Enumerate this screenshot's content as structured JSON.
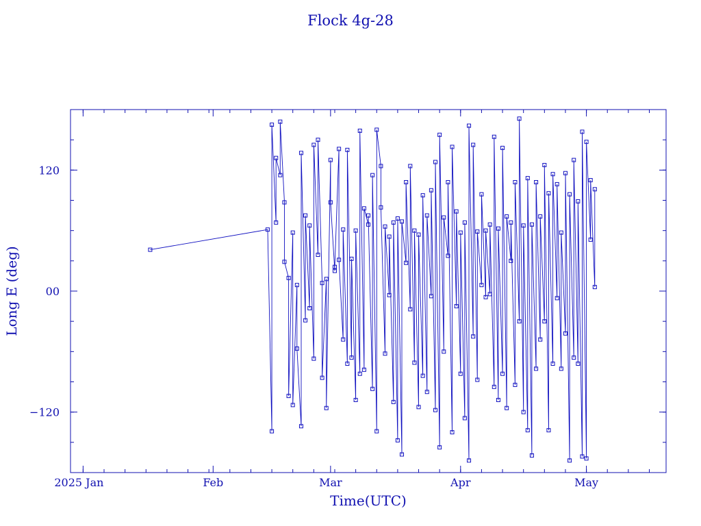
{
  "chart_data": {
    "type": "line",
    "title": "Flock 4g-28",
    "xlabel": "Time(UTC)",
    "ylabel": "Long E (deg)",
    "x_axis": {
      "range": [
        "2024-12-29",
        "2025-05-20"
      ],
      "tick_labels": [
        {
          "label": "2025 Jan",
          "date": "2025-01-01"
        },
        {
          "label": "Feb",
          "date": "2025-02-01"
        },
        {
          "label": "Mar",
          "date": "2025-03-01"
        },
        {
          "label": "Apr",
          "date": "2025-04-01"
        },
        {
          "label": "May",
          "date": "2025-05-01"
        }
      ]
    },
    "y_axis": {
      "range": [
        -180,
        180
      ],
      "tick_labels": [
        {
          "label": "−120",
          "value": -120
        },
        {
          "label": "00",
          "value": 0
        },
        {
          "label": "120",
          "value": 120
        }
      ]
    },
    "grid": false,
    "series_color": "#1010c0",
    "frame_color": "#1010b0",
    "points": [
      {
        "x": "2025-01-17",
        "y": 41
      },
      {
        "x": "2025-02-14",
        "y": 61
      },
      {
        "x": "2025-02-15",
        "y": -139
      },
      {
        "x": "2025-02-15",
        "y": 165
      },
      {
        "x": "2025-02-16",
        "y": 68
      },
      {
        "x": "2025-02-16",
        "y": 132
      },
      {
        "x": "2025-02-17",
        "y": 115
      },
      {
        "x": "2025-02-17",
        "y": 168
      },
      {
        "x": "2025-02-18",
        "y": 88
      },
      {
        "x": "2025-02-18",
        "y": 29
      },
      {
        "x": "2025-02-19",
        "y": 13
      },
      {
        "x": "2025-02-19",
        "y": -104
      },
      {
        "x": "2025-02-20",
        "y": 58
      },
      {
        "x": "2025-02-20",
        "y": -113
      },
      {
        "x": "2025-02-21",
        "y": 6
      },
      {
        "x": "2025-02-21",
        "y": -57
      },
      {
        "x": "2025-02-22",
        "y": -134
      },
      {
        "x": "2025-02-22",
        "y": 137
      },
      {
        "x": "2025-02-23",
        "y": -29
      },
      {
        "x": "2025-02-23",
        "y": 75
      },
      {
        "x": "2025-02-24",
        "y": -17
      },
      {
        "x": "2025-02-24",
        "y": 65
      },
      {
        "x": "2025-02-25",
        "y": -67
      },
      {
        "x": "2025-02-25",
        "y": 145
      },
      {
        "x": "2025-02-26",
        "y": 36
      },
      {
        "x": "2025-02-26",
        "y": 150
      },
      {
        "x": "2025-02-27",
        "y": 8
      },
      {
        "x": "2025-02-27",
        "y": -86
      },
      {
        "x": "2025-02-28",
        "y": 12
      },
      {
        "x": "2025-02-28",
        "y": -116
      },
      {
        "x": "2025-03-01",
        "y": 130
      },
      {
        "x": "2025-03-01",
        "y": 88
      },
      {
        "x": "2025-03-02",
        "y": 20
      },
      {
        "x": "2025-03-02",
        "y": 24
      },
      {
        "x": "2025-03-03",
        "y": 141
      },
      {
        "x": "2025-03-03",
        "y": 31
      },
      {
        "x": "2025-03-04",
        "y": -48
      },
      {
        "x": "2025-03-04",
        "y": 61
      },
      {
        "x": "2025-03-05",
        "y": -72
      },
      {
        "x": "2025-03-05",
        "y": 140
      },
      {
        "x": "2025-03-06",
        "y": -66
      },
      {
        "x": "2025-03-06",
        "y": 32
      },
      {
        "x": "2025-03-07",
        "y": -108
      },
      {
        "x": "2025-03-07",
        "y": 60
      },
      {
        "x": "2025-03-08",
        "y": -82
      },
      {
        "x": "2025-03-08",
        "y": 159
      },
      {
        "x": "2025-03-09",
        "y": -78
      },
      {
        "x": "2025-03-09",
        "y": 82
      },
      {
        "x": "2025-03-10",
        "y": 66
      },
      {
        "x": "2025-03-10",
        "y": 75
      },
      {
        "x": "2025-03-11",
        "y": -97
      },
      {
        "x": "2025-03-11",
        "y": 115
      },
      {
        "x": "2025-03-12",
        "y": -139
      },
      {
        "x": "2025-03-12",
        "y": 160
      },
      {
        "x": "2025-03-13",
        "y": 124
      },
      {
        "x": "2025-03-13",
        "y": 83
      },
      {
        "x": "2025-03-14",
        "y": -62
      },
      {
        "x": "2025-03-14",
        "y": 64
      },
      {
        "x": "2025-03-15",
        "y": -4
      },
      {
        "x": "2025-03-15",
        "y": 54
      },
      {
        "x": "2025-03-16",
        "y": -110
      },
      {
        "x": "2025-03-16",
        "y": 68
      },
      {
        "x": "2025-03-17",
        "y": -148
      },
      {
        "x": "2025-03-17",
        "y": 72
      },
      {
        "x": "2025-03-18",
        "y": -162
      },
      {
        "x": "2025-03-18",
        "y": 69
      },
      {
        "x": "2025-03-19",
        "y": 28
      },
      {
        "x": "2025-03-19",
        "y": 108
      },
      {
        "x": "2025-03-20",
        "y": -18
      },
      {
        "x": "2025-03-20",
        "y": 124
      },
      {
        "x": "2025-03-21",
        "y": -71
      },
      {
        "x": "2025-03-21",
        "y": 60
      },
      {
        "x": "2025-03-22",
        "y": -115
      },
      {
        "x": "2025-03-22",
        "y": 56
      },
      {
        "x": "2025-03-23",
        "y": -84
      },
      {
        "x": "2025-03-23",
        "y": 95
      },
      {
        "x": "2025-03-24",
        "y": -100
      },
      {
        "x": "2025-03-24",
        "y": 75
      },
      {
        "x": "2025-03-25",
        "y": -5
      },
      {
        "x": "2025-03-25",
        "y": 100
      },
      {
        "x": "2025-03-26",
        "y": -118
      },
      {
        "x": "2025-03-26",
        "y": 128
      },
      {
        "x": "2025-03-27",
        "y": -155
      },
      {
        "x": "2025-03-27",
        "y": 155
      },
      {
        "x": "2025-03-28",
        "y": -60
      },
      {
        "x": "2025-03-28",
        "y": 73
      },
      {
        "x": "2025-03-29",
        "y": 35
      },
      {
        "x": "2025-03-29",
        "y": 108
      },
      {
        "x": "2025-03-30",
        "y": -140
      },
      {
        "x": "2025-03-30",
        "y": 143
      },
      {
        "x": "2025-03-31",
        "y": -15
      },
      {
        "x": "2025-03-31",
        "y": 79
      },
      {
        "x": "2025-04-01",
        "y": -82
      },
      {
        "x": "2025-04-01",
        "y": 58
      },
      {
        "x": "2025-04-02",
        "y": -126
      },
      {
        "x": "2025-04-02",
        "y": 68
      },
      {
        "x": "2025-04-03",
        "y": -168
      },
      {
        "x": "2025-04-03",
        "y": 164
      },
      {
        "x": "2025-04-04",
        "y": -45
      },
      {
        "x": "2025-04-04",
        "y": 145
      },
      {
        "x": "2025-04-05",
        "y": -88
      },
      {
        "x": "2025-04-05",
        "y": 59
      },
      {
        "x": "2025-04-06",
        "y": 6
      },
      {
        "x": "2025-04-06",
        "y": 96
      },
      {
        "x": "2025-04-07",
        "y": -6
      },
      {
        "x": "2025-04-07",
        "y": 60
      },
      {
        "x": "2025-04-08",
        "y": -3
      },
      {
        "x": "2025-04-08",
        "y": 66
      },
      {
        "x": "2025-04-09",
        "y": -95
      },
      {
        "x": "2025-04-09",
        "y": 153
      },
      {
        "x": "2025-04-10",
        "y": -108
      },
      {
        "x": "2025-04-10",
        "y": 62
      },
      {
        "x": "2025-04-11",
        "y": -82
      },
      {
        "x": "2025-04-11",
        "y": 142
      },
      {
        "x": "2025-04-12",
        "y": -116
      },
      {
        "x": "2025-04-12",
        "y": 74
      },
      {
        "x": "2025-04-13",
        "y": 30
      },
      {
        "x": "2025-04-13",
        "y": 68
      },
      {
        "x": "2025-04-14",
        "y": -93
      },
      {
        "x": "2025-04-14",
        "y": 108
      },
      {
        "x": "2025-04-15",
        "y": -30
      },
      {
        "x": "2025-04-15",
        "y": 171
      },
      {
        "x": "2025-04-16",
        "y": -120
      },
      {
        "x": "2025-04-16",
        "y": 65
      },
      {
        "x": "2025-04-17",
        "y": -138
      },
      {
        "x": "2025-04-17",
        "y": 112
      },
      {
        "x": "2025-04-18",
        "y": -163
      },
      {
        "x": "2025-04-18",
        "y": 66
      },
      {
        "x": "2025-04-19",
        "y": -77
      },
      {
        "x": "2025-04-19",
        "y": 108
      },
      {
        "x": "2025-04-20",
        "y": -48
      },
      {
        "x": "2025-04-20",
        "y": 74
      },
      {
        "x": "2025-04-21",
        "y": -30
      },
      {
        "x": "2025-04-21",
        "y": 125
      },
      {
        "x": "2025-04-22",
        "y": -138
      },
      {
        "x": "2025-04-22",
        "y": 97
      },
      {
        "x": "2025-04-23",
        "y": -72
      },
      {
        "x": "2025-04-23",
        "y": 116
      },
      {
        "x": "2025-04-24",
        "y": -7
      },
      {
        "x": "2025-04-24",
        "y": 106
      },
      {
        "x": "2025-04-25",
        "y": -77
      },
      {
        "x": "2025-04-25",
        "y": 58
      },
      {
        "x": "2025-04-26",
        "y": -42
      },
      {
        "x": "2025-04-26",
        "y": 117
      },
      {
        "x": "2025-04-27",
        "y": -168
      },
      {
        "x": "2025-04-27",
        "y": 96
      },
      {
        "x": "2025-04-28",
        "y": -66
      },
      {
        "x": "2025-04-28",
        "y": 130
      },
      {
        "x": "2025-04-29",
        "y": -72
      },
      {
        "x": "2025-04-29",
        "y": 89
      },
      {
        "x": "2025-04-30",
        "y": -164
      },
      {
        "x": "2025-04-30",
        "y": 158
      },
      {
        "x": "2025-05-01",
        "y": -166
      },
      {
        "x": "2025-05-01",
        "y": 148
      },
      {
        "x": "2025-05-02",
        "y": 51
      },
      {
        "x": "2025-05-02",
        "y": 110
      },
      {
        "x": "2025-05-03",
        "y": 4
      },
      {
        "x": "2025-05-03",
        "y": 101
      }
    ]
  }
}
